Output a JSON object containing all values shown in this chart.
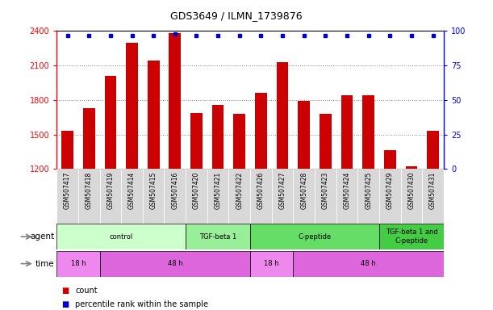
{
  "title": "GDS3649 / ILMN_1739876",
  "samples": [
    "GSM507417",
    "GSM507418",
    "GSM507419",
    "GSM507414",
    "GSM507415",
    "GSM507416",
    "GSM507420",
    "GSM507421",
    "GSM507422",
    "GSM507426",
    "GSM507427",
    "GSM507428",
    "GSM507423",
    "GSM507424",
    "GSM507425",
    "GSM507429",
    "GSM507430",
    "GSM507431"
  ],
  "counts": [
    1530,
    1730,
    2010,
    2300,
    2140,
    2380,
    1690,
    1760,
    1680,
    1860,
    2130,
    1790,
    1680,
    1840,
    1840,
    1360,
    1220,
    1530
  ],
  "percentile_ranks": [
    97,
    97,
    97,
    97,
    97,
    98,
    97,
    97,
    97,
    97,
    97,
    97,
    97,
    97,
    97,
    97,
    97,
    97
  ],
  "bar_color": "#cc0000",
  "dot_color": "#0000cc",
  "ylim_left": [
    1200,
    2400
  ],
  "ylim_right": [
    0,
    100
  ],
  "yticks_left": [
    1200,
    1500,
    1800,
    2100,
    2400
  ],
  "yticks_right": [
    0,
    25,
    50,
    75,
    100
  ],
  "agent_groups": [
    {
      "label": "control",
      "start": 0,
      "end": 6,
      "color": "#ccffcc"
    },
    {
      "label": "TGF-beta 1",
      "start": 6,
      "end": 9,
      "color": "#99ee99"
    },
    {
      "label": "C-peptide",
      "start": 9,
      "end": 15,
      "color": "#66dd66"
    },
    {
      "label": "TGF-beta 1 and\nC-peptide",
      "start": 15,
      "end": 18,
      "color": "#44cc44"
    }
  ],
  "time_groups": [
    {
      "label": "18 h",
      "start": 0,
      "end": 2,
      "color": "#ee88ee"
    },
    {
      "label": "48 h",
      "start": 2,
      "end": 9,
      "color": "#dd66dd"
    },
    {
      "label": "18 h",
      "start": 9,
      "end": 11,
      "color": "#ee88ee"
    },
    {
      "label": "48 h",
      "start": 11,
      "end": 18,
      "color": "#dd66dd"
    }
  ],
  "agent_label": "agent",
  "time_label": "time",
  "legend_count_label": "count",
  "legend_pct_label": "percentile rank within the sample",
  "grid_color": "#888888",
  "background_color": "#ffffff",
  "plot_bg_color": "#ffffff",
  "sample_bg_color": "#d8d8d8",
  "border_color": "#000000"
}
